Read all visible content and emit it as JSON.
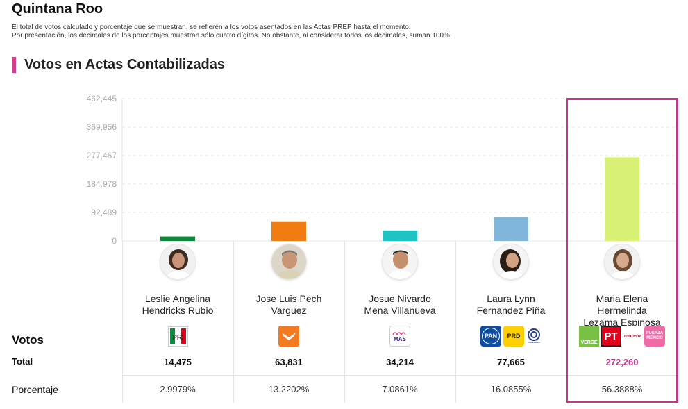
{
  "state_title": "Quintana Roo",
  "notes": [
    "El total de votos calculado y porcentaje que se muestran, se refieren a los votos asentados en las Actas PREP hasta el momento.",
    "Por presentación, los decimales de los porcentajes muestran sólo cuatro dígitos. No obstante, al considerar todos los decimales, suman 100%."
  ],
  "section_title": "Votos en Actas Contabilizadas",
  "rows": {
    "votos_label": "Votos",
    "total_label": "Total",
    "pct_label": "Porcentaje"
  },
  "colors": {
    "accent": "#d63f8c",
    "winner_border": "#c2378c",
    "winner_total": "#c2378c"
  },
  "chart_data": {
    "type": "bar",
    "categories": [
      "Leslie Angelina Hendricks Rubio",
      "Jose Luis Pech Varguez",
      "Josue Nivardo Mena Villanueva",
      "Laura Lynn Fernandez Piña",
      "Maria Elena Hermelinda Lezama Espinosa"
    ],
    "values": [
      14475,
      63831,
      34214,
      77665,
      272260
    ],
    "colors": [
      "#0b8a3c",
      "#f07c12",
      "#1fc3c3",
      "#7fb6da",
      "#d8f174"
    ],
    "y_ticks": [
      "0",
      "92,489",
      "184,978",
      "277,467",
      "369,956",
      "462,445"
    ],
    "ylim": [
      0,
      462445
    ],
    "grid": true
  },
  "candidates": [
    {
      "name_lines": [
        "Leslie Angelina",
        "Hendricks Rubio"
      ],
      "total": "14,475",
      "percentage": "2.9979%",
      "avatar_icon": "candidate-photo-woman-curly-hair",
      "parties": [
        {
          "label": "PRI",
          "color": "#00923f"
        }
      ]
    },
    {
      "name_lines": [
        "Jose Luis Pech",
        "Varguez"
      ],
      "total": "63,831",
      "percentage": "13.2202%",
      "avatar_icon": "candidate-photo-man-gray-hair",
      "parties": [
        {
          "label": "MC",
          "color": "#f47a20"
        }
      ]
    },
    {
      "name_lines": [
        "Josue Nivardo",
        "Mena Villanueva"
      ],
      "total": "34,214",
      "percentage": "7.0861%",
      "avatar_icon": "candidate-photo-man-smiling",
      "parties": [
        {
          "label": "MAS",
          "color": "#ffffff"
        }
      ]
    },
    {
      "name_lines": [
        "Laura Lynn",
        "Fernandez Piña"
      ],
      "total": "77,665",
      "percentage": "16.0855%",
      "avatar_icon": "candidate-photo-woman-dark-hair",
      "parties": [
        {
          "label": "PAN",
          "color": "#0b4ea2"
        },
        {
          "label": "PRD",
          "color": "#ffd000"
        },
        {
          "label": "CONFIANZA",
          "color": "#ffffff"
        }
      ]
    },
    {
      "name_lines": [
        "Maria Elena",
        "Hermelinda",
        "Lezama Espinosa"
      ],
      "total": "272,260",
      "percentage": "56.3888%",
      "avatar_icon": "candidate-photo-woman-brown-hair",
      "parties": [
        {
          "label": "VERDE",
          "color": "#79c143"
        },
        {
          "label": "PT",
          "color": "#e2001a"
        },
        {
          "label": "morena",
          "color": "#ffffff"
        },
        {
          "label": "FUERZA MÉXICO",
          "color": "#f06aa8"
        }
      ]
    }
  ]
}
